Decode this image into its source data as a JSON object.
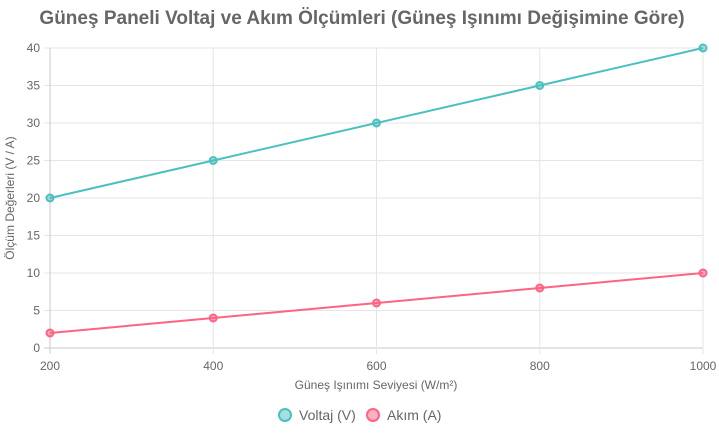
{
  "chart_data": {
    "type": "line",
    "title": "Güneş Paneli Voltaj ve Akım Ölçümleri (Güneş Işınımı Değişimine Göre)",
    "xlabel": "Güneş Işınımı Seviyesi (W/m²)",
    "ylabel": "Ölçüm Değerleri (V / A)",
    "x": [
      200,
      400,
      600,
      800,
      1000
    ],
    "xlim": [
      200,
      1000
    ],
    "ylim": [
      0,
      40
    ],
    "x_ticks": [
      200,
      400,
      600,
      800,
      1000
    ],
    "y_ticks": [
      0,
      5,
      10,
      15,
      20,
      25,
      30,
      35,
      40
    ],
    "grid": true,
    "legend_position": "bottom",
    "series": [
      {
        "name": "Voltaj (V)",
        "values": [
          20,
          25,
          30,
          35,
          40
        ],
        "color": "#4bc0c0"
      },
      {
        "name": "Akım (A)",
        "values": [
          2,
          4,
          6,
          8,
          10
        ],
        "color": "#ff6384"
      }
    ]
  }
}
